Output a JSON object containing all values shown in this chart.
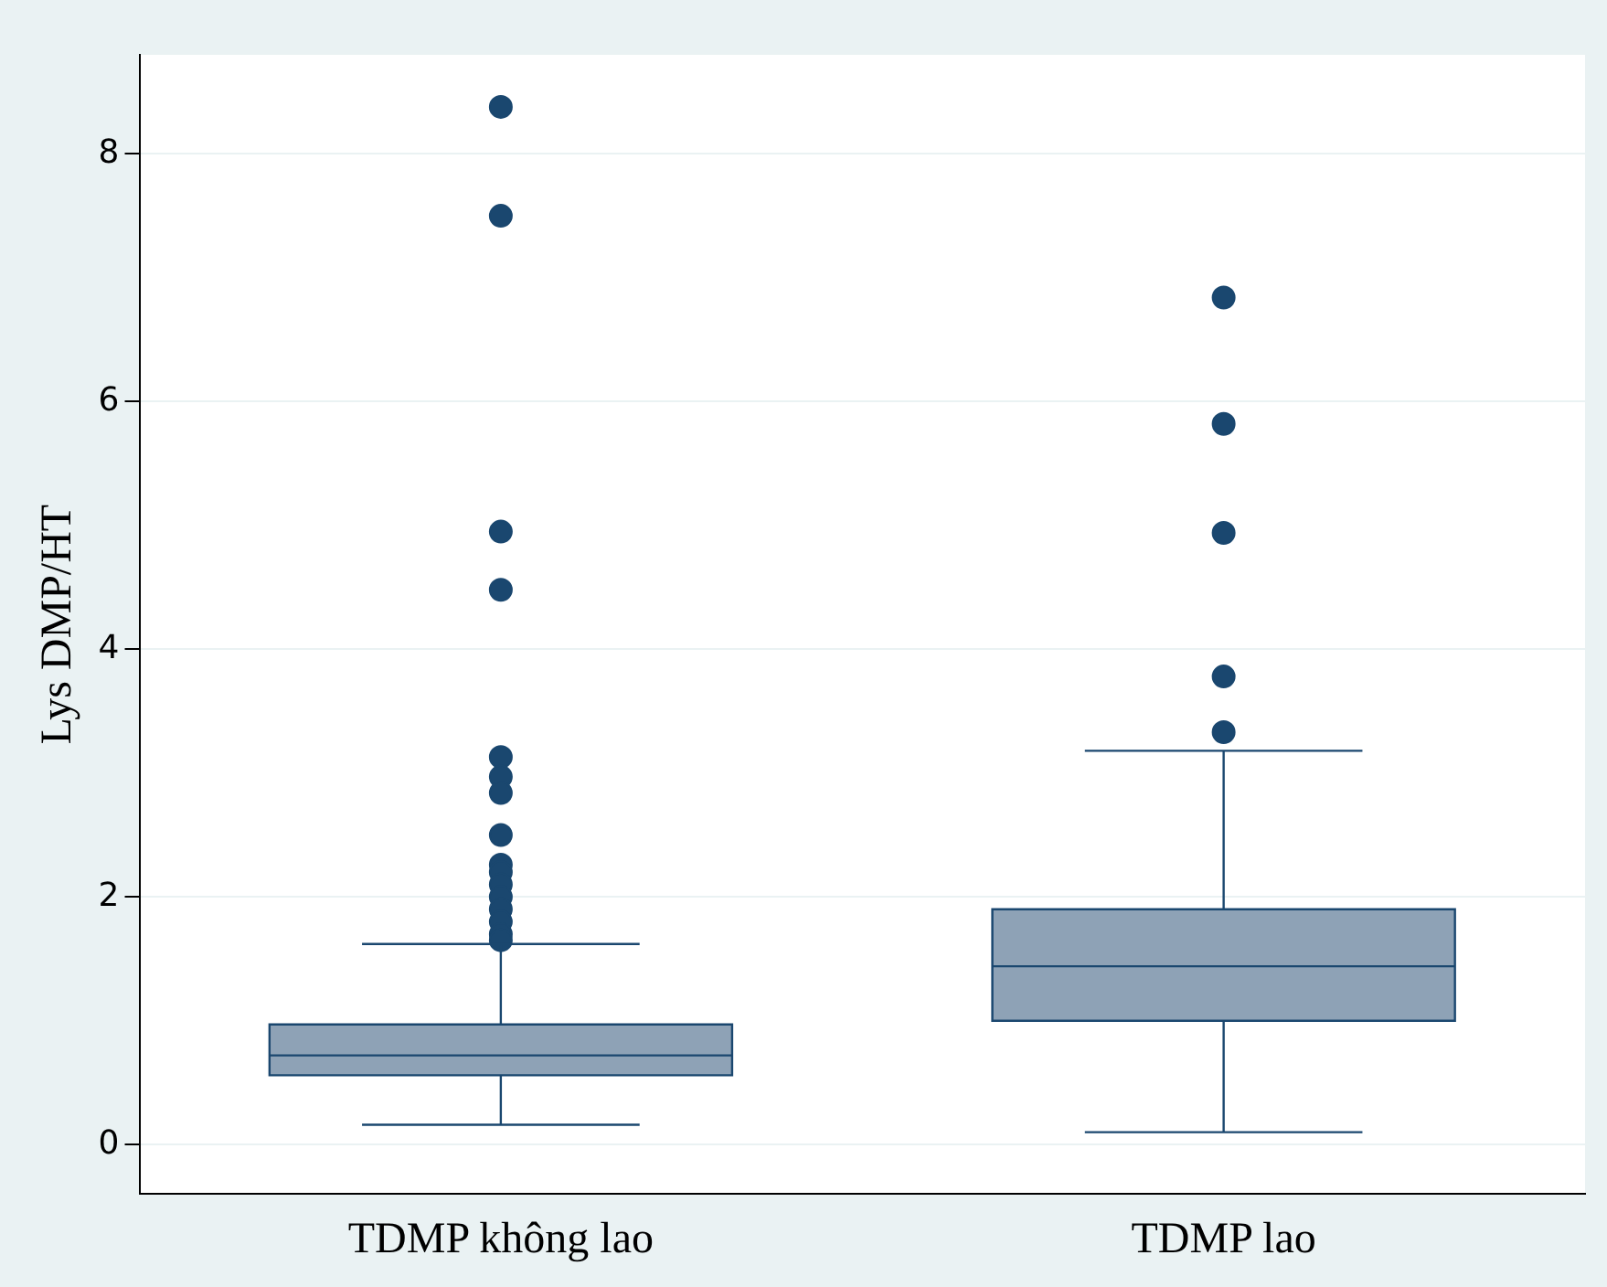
{
  "chart_data": {
    "type": "box",
    "ylabel": "Lys DMP/HT",
    "categories": [
      "TDMP không lao",
      "TDMP lao"
    ],
    "color": "#8ea2b6",
    "ylim": [
      -0.4,
      8.8
    ],
    "yticks": [
      0,
      2,
      4,
      6,
      8
    ],
    "grid": "y",
    "legend": false,
    "boxes": [
      {
        "low": 0.16,
        "q1": 0.56,
        "median": 0.72,
        "q3": 0.97,
        "high": 1.62,
        "outliers": [
          8.38,
          7.5,
          4.95,
          4.48,
          3.13,
          2.97,
          2.84,
          2.5,
          2.26,
          2.2,
          2.1,
          2.0,
          1.9,
          1.8,
          1.7,
          1.65
        ]
      },
      {
        "low": 0.1,
        "q1": 1.0,
        "median": 1.44,
        "q3": 1.9,
        "high": 3.18,
        "outliers": [
          6.84,
          5.82,
          4.94,
          3.78,
          3.33
        ]
      }
    ]
  }
}
